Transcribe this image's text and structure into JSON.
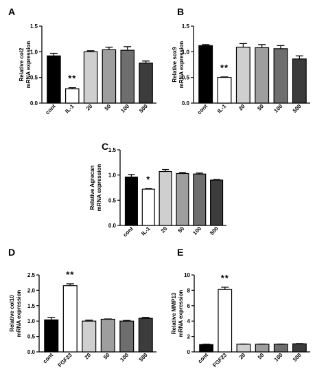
{
  "chart_data": [
    {
      "panel": "A",
      "type": "bar",
      "categories": [
        "cont",
        "IL-1",
        "20",
        "50",
        "100",
        "500"
      ],
      "values": [
        0.92,
        0.28,
        1.0,
        1.04,
        1.03,
        0.78
      ],
      "errors": [
        0.05,
        0.02,
        0.02,
        0.05,
        0.07,
        0.04
      ],
      "colors": [
        "#000000",
        "#ffffff",
        "#cfcfcf",
        "#9e9e9e",
        "#6e6e6e",
        "#3c3c3c"
      ],
      "ylabel": [
        "Relative col2",
        "mRNA expression"
      ],
      "ylim": [
        0,
        1.5
      ],
      "yticks": [
        "0.0",
        "0.5",
        "1.0",
        "1.5"
      ],
      "significance": [
        {
          "index": 1,
          "label": "**"
        }
      ]
    },
    {
      "panel": "B",
      "type": "bar",
      "categories": [
        "cont",
        "IL-1",
        "20",
        "50",
        "100",
        "500"
      ],
      "values": [
        1.12,
        0.5,
        1.09,
        1.08,
        1.06,
        0.86
      ],
      "errors": [
        0.02,
        0.01,
        0.07,
        0.06,
        0.06,
        0.06
      ],
      "colors": [
        "#000000",
        "#ffffff",
        "#cfcfcf",
        "#9e9e9e",
        "#6e6e6e",
        "#3c3c3c"
      ],
      "ylabel": [
        "Relative sox9",
        "mRNA expression"
      ],
      "ylim": [
        0,
        1.5
      ],
      "yticks": [
        "0.0",
        "0.5",
        "1.0",
        "1.5"
      ],
      "significance": [
        {
          "index": 1,
          "label": "**"
        }
      ]
    },
    {
      "panel": "C",
      "type": "bar",
      "categories": [
        "cont",
        "IL-1",
        "20",
        "50",
        "100",
        "500"
      ],
      "values": [
        0.96,
        0.72,
        1.07,
        1.03,
        1.02,
        0.9
      ],
      "errors": [
        0.05,
        0.01,
        0.04,
        0.02,
        0.02,
        0.01
      ],
      "colors": [
        "#000000",
        "#ffffff",
        "#cfcfcf",
        "#9e9e9e",
        "#6e6e6e",
        "#3c3c3c"
      ],
      "ylabel": [
        "Relative Agrecan",
        "mRNA expression"
      ],
      "ylim": [
        0,
        1.5
      ],
      "yticks": [
        "0.0",
        "0.5",
        "1.0",
        "1.5"
      ],
      "significance": [
        {
          "index": 1,
          "label": "*"
        }
      ]
    },
    {
      "panel": "D",
      "type": "bar",
      "categories": [
        "cont",
        "FGF23",
        "20",
        "50",
        "100",
        "500"
      ],
      "values": [
        1.04,
        2.15,
        1.0,
        1.06,
        1.0,
        1.09
      ],
      "errors": [
        0.08,
        0.06,
        0.03,
        0.01,
        0.02,
        0.03
      ],
      "colors": [
        "#000000",
        "#ffffff",
        "#cfcfcf",
        "#9e9e9e",
        "#6e6e6e",
        "#3c3c3c"
      ],
      "ylabel": [
        "Relative col10",
        "mRNA expression"
      ],
      "ylim": [
        0,
        2.5
      ],
      "yticks": [
        "0.0",
        "0.5",
        "1.0",
        "1.5",
        "2.0",
        "2.5"
      ],
      "significance": [
        {
          "index": 1,
          "label": "**"
        }
      ]
    },
    {
      "panel": "E",
      "type": "bar",
      "categories": [
        "cont",
        "FGF23",
        "20",
        "50",
        "100",
        "500"
      ],
      "values": [
        0.95,
        8.1,
        1.0,
        1.0,
        1.0,
        1.05
      ],
      "errors": [
        0.05,
        0.3,
        0.02,
        0.02,
        0.02,
        0.03
      ],
      "colors": [
        "#000000",
        "#ffffff",
        "#cfcfcf",
        "#9e9e9e",
        "#6e6e6e",
        "#3c3c3c"
      ],
      "ylabel": [
        "Relative MMP13",
        "mRNA expression"
      ],
      "ylim": [
        0,
        10
      ],
      "yticks": [
        "0",
        "2",
        "4",
        "6",
        "8",
        "10"
      ],
      "significance": [
        {
          "index": 1,
          "label": "**"
        }
      ]
    }
  ]
}
